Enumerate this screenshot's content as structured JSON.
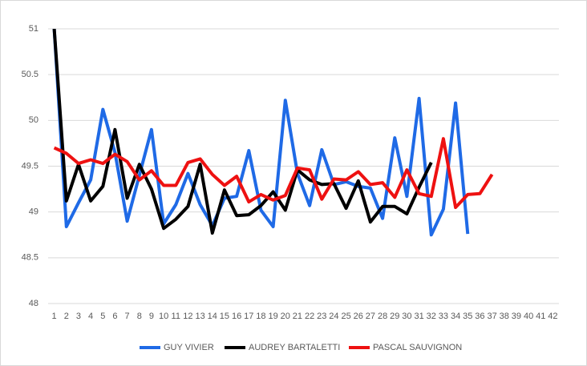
{
  "chart_data": {
    "type": "line",
    "categories": [
      "1",
      "2",
      "3",
      "4",
      "5",
      "6",
      "7",
      "8",
      "9",
      "10",
      "11",
      "12",
      "13",
      "14",
      "15",
      "16",
      "17",
      "18",
      "19",
      "20",
      "21",
      "22",
      "23",
      "24",
      "25",
      "26",
      "27",
      "28",
      "29",
      "30",
      "31",
      "32",
      "33",
      "34",
      "35",
      "36",
      "37",
      "38",
      "39",
      "40",
      "41",
      "42"
    ],
    "series": [
      {
        "name": "GUY VIVIER",
        "color": "#1f6ae6",
        "values": [
          51,
          48.84,
          49.1,
          49.35,
          50.12,
          49.65,
          48.9,
          49.4,
          49.9,
          48.87,
          49.08,
          49.42,
          49.08,
          48.85,
          49.15,
          49.17,
          49.67,
          49.02,
          48.84,
          50.22,
          49.42,
          49.07,
          49.68,
          49.3,
          49.33,
          49.28,
          49.26,
          48.93,
          49.81,
          49.17,
          50.24,
          48.75,
          49.03,
          50.19,
          48.76,
          null,
          null,
          null,
          null,
          null,
          null,
          null
        ]
      },
      {
        "name": "AUDREY BARTALETTI",
        "color": "#000000",
        "values": [
          51,
          49.12,
          49.52,
          49.12,
          49.28,
          49.9,
          49.15,
          49.52,
          49.25,
          48.82,
          48.92,
          49.06,
          49.52,
          48.77,
          49.24,
          48.96,
          48.97,
          49.07,
          49.22,
          49.02,
          49.46,
          49.35,
          49.3,
          49.31,
          49.04,
          49.34,
          48.89,
          49.06,
          49.06,
          48.98,
          49.27,
          49.54,
          null,
          null,
          null,
          null,
          null,
          null,
          null,
          null,
          null,
          null
        ]
      },
      {
        "name": "PASCAL SAUVIGNON",
        "color": "#ee1111",
        "values": [
          49.7,
          49.64,
          49.53,
          49.57,
          49.53,
          49.63,
          49.55,
          49.35,
          49.45,
          49.29,
          49.29,
          49.54,
          49.58,
          49.41,
          49.29,
          49.39,
          49.11,
          49.19,
          49.13,
          49.18,
          49.48,
          49.46,
          49.14,
          49.36,
          49.35,
          49.44,
          49.3,
          49.32,
          49.16,
          49.46,
          49.2,
          49.17,
          49.8,
          49.05,
          49.19,
          49.2,
          49.41,
          null,
          null,
          null,
          null,
          null
        ]
      }
    ],
    "ylim": [
      48,
      51
    ],
    "yticks": [
      48,
      48.5,
      49,
      49.5,
      50,
      50.5,
      51
    ],
    "grid": true,
    "legend": "bottom"
  }
}
